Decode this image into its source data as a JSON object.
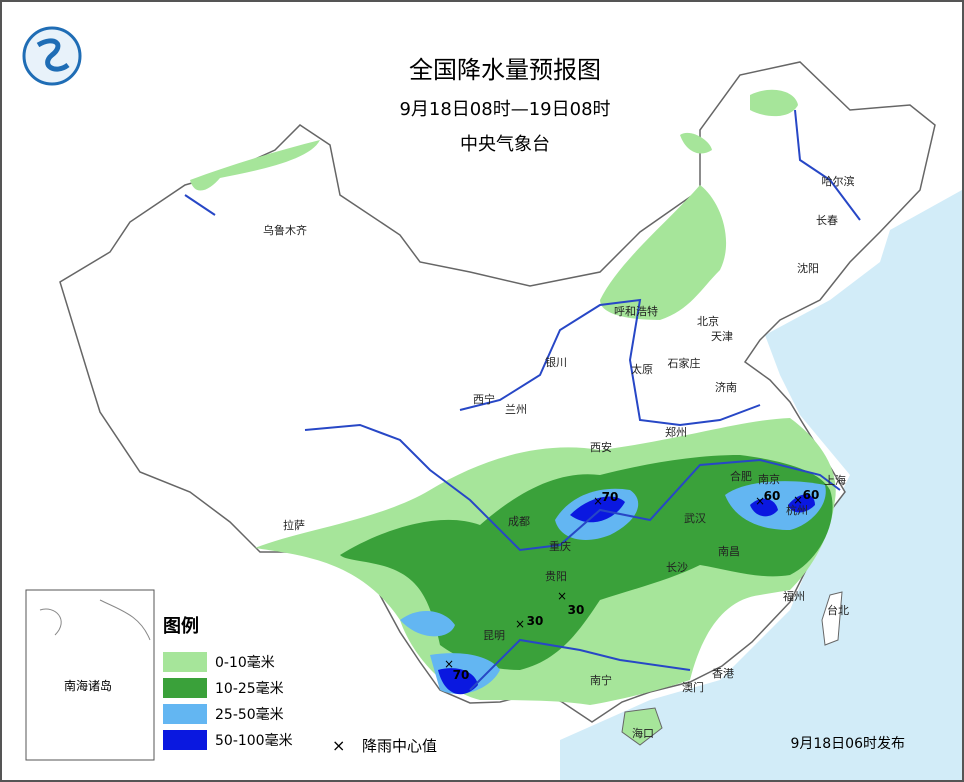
{
  "header": {
    "title": "全国降水量预报图",
    "subtitle": "9月18日08时—19日08时",
    "issuer": "中央气象台"
  },
  "cities": [
    "乌鲁木齐",
    "哈尔滨",
    "长春",
    "沈阳",
    "呼和浩特",
    "北京",
    "天津",
    "银川",
    "石家庄",
    "太原",
    "济南",
    "西宁",
    "兰州",
    "郑州",
    "西安",
    "合肥",
    "南京",
    "上海",
    "杭州",
    "成都",
    "武汉",
    "拉萨",
    "重庆",
    "南昌",
    "长沙",
    "贵阳",
    "福州",
    "台北",
    "昆明",
    "南宁",
    "香港",
    "澳门",
    "海口"
  ],
  "rain_center_values": [
    70,
    60,
    60,
    30,
    30,
    70
  ],
  "inset": {
    "label": "南海诸岛"
  },
  "legend": {
    "title": "图例",
    "items": [
      {
        "label": "0-10毫米",
        "color": "#a6e59a"
      },
      {
        "label": "10-25毫米",
        "color": "#3aa13a"
      },
      {
        "label": "25-50毫米",
        "color": "#63b6f2"
      },
      {
        "label": "50-100毫米",
        "color": "#0a18e0"
      }
    ],
    "center_symbol": "×",
    "center_label": "降雨中心值"
  },
  "footer": {
    "issued": "9月18日06时发布"
  }
}
